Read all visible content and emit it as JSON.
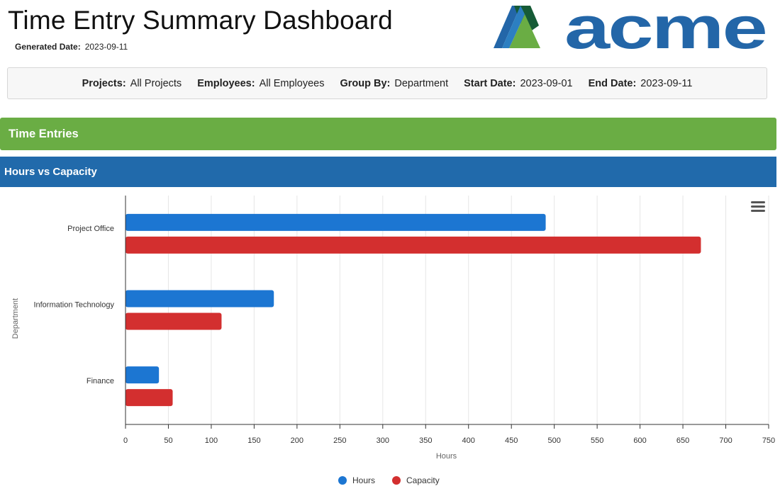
{
  "header": {
    "title": "Time Entry Summary Dashboard",
    "generated_label": "Generated Date:",
    "generated_value": "2023-09-11",
    "logo_text": "acme"
  },
  "filters": [
    {
      "key": "Projects:",
      "value": "All Projects"
    },
    {
      "key": "Employees:",
      "value": "All Employees"
    },
    {
      "key": "Group By:",
      "value": "Department"
    },
    {
      "key": "Start Date:",
      "value": "2023-09-01"
    },
    {
      "key": "End Date:",
      "value": "2023-09-11"
    }
  ],
  "sections": {
    "time_entries": "Time Entries",
    "hours_vs_capacity": "Hours vs Capacity"
  },
  "colors": {
    "hours": "#1c76d2",
    "capacity": "#d32f2f",
    "accent_green": "#6aad44",
    "accent_blue": "#216aab"
  },
  "chart_menu_icon": "hamburger-menu-icon",
  "chart_data": {
    "type": "bar",
    "orientation": "horizontal",
    "categories": [
      "Project Office",
      "Information Technology",
      "Finance"
    ],
    "series": [
      {
        "name": "Hours",
        "values": [
          490,
          173,
          39
        ]
      },
      {
        "name": "Capacity",
        "values": [
          671,
          112,
          55
        ]
      }
    ],
    "xlabel": "Hours",
    "ylabel": "Department",
    "xlim": [
      0,
      750
    ],
    "xticks": [
      0,
      50,
      100,
      150,
      200,
      250,
      300,
      350,
      400,
      450,
      500,
      550,
      600,
      650,
      700,
      750
    ],
    "grid": true,
    "legend": "bottom-center"
  }
}
